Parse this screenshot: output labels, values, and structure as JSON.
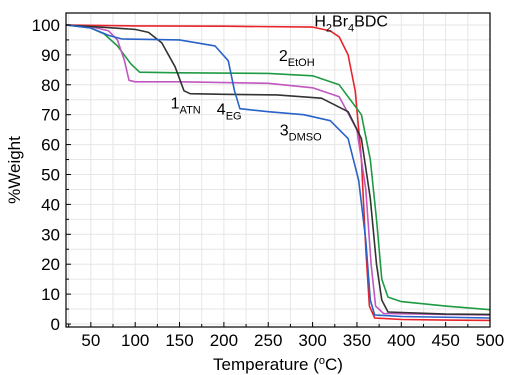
{
  "chart_data": {
    "type": "line",
    "xlabel": {
      "main": "Temperature (",
      "sup": "o",
      "tail": "C)"
    },
    "ylabel": "%Weight",
    "xlim": [
      22,
      500
    ],
    "ylim": [
      -1,
      104
    ],
    "xticks": [
      50,
      100,
      150,
      200,
      250,
      300,
      350,
      400,
      450,
      500
    ],
    "yticks": [
      0,
      10,
      20,
      30,
      40,
      50,
      60,
      70,
      80,
      90,
      100
    ],
    "grid": true,
    "series": [
      {
        "name": "H2Br4BDC",
        "color": "#e8242a",
        "points": [
          [
            22,
            100
          ],
          [
            100,
            99.7
          ],
          [
            200,
            99.6
          ],
          [
            300,
            99.3
          ],
          [
            320,
            98
          ],
          [
            330,
            96
          ],
          [
            340,
            90
          ],
          [
            348,
            78
          ],
          [
            355,
            55
          ],
          [
            360,
            25
          ],
          [
            364,
            6
          ],
          [
            370,
            2
          ],
          [
            400,
            1.5
          ],
          [
            450,
            1.3
          ],
          [
            500,
            1.2
          ]
        ]
      },
      {
        "name": "2EtOH",
        "color": "#1f9a44",
        "points": [
          [
            22,
            100
          ],
          [
            50,
            99
          ],
          [
            65,
            97
          ],
          [
            80,
            93
          ],
          [
            95,
            87
          ],
          [
            105,
            84.2
          ],
          [
            150,
            84
          ],
          [
            250,
            83.8
          ],
          [
            300,
            83
          ],
          [
            330,
            80
          ],
          [
            355,
            70
          ],
          [
            365,
            55
          ],
          [
            372,
            35
          ],
          [
            378,
            15
          ],
          [
            385,
            9
          ],
          [
            400,
            7.5
          ],
          [
            450,
            6
          ],
          [
            500,
            4.8
          ]
        ]
      },
      {
        "name": "1ATN",
        "color": "#c157c0",
        "points": [
          [
            22,
            100
          ],
          [
            50,
            99.5
          ],
          [
            70,
            98
          ],
          [
            80,
            95
          ],
          [
            88,
            88
          ],
          [
            93,
            81.5
          ],
          [
            100,
            81
          ],
          [
            150,
            81
          ],
          [
            250,
            80.5
          ],
          [
            300,
            79
          ],
          [
            330,
            76
          ],
          [
            350,
            65
          ],
          [
            360,
            45
          ],
          [
            366,
            20
          ],
          [
            371,
            6
          ],
          [
            380,
            3.5
          ],
          [
            450,
            3.2
          ],
          [
            500,
            3
          ]
        ]
      },
      {
        "name": "4EG",
        "color": "#333333",
        "points": [
          [
            22,
            100
          ],
          [
            60,
            99.3
          ],
          [
            100,
            98.5
          ],
          [
            115,
            97.5
          ],
          [
            130,
            94
          ],
          [
            145,
            86
          ],
          [
            155,
            78
          ],
          [
            162,
            77
          ],
          [
            200,
            76.8
          ],
          [
            260,
            76.6
          ],
          [
            310,
            75.5
          ],
          [
            340,
            71
          ],
          [
            355,
            62
          ],
          [
            365,
            42
          ],
          [
            372,
            20
          ],
          [
            378,
            8
          ],
          [
            385,
            4
          ],
          [
            450,
            3.3
          ],
          [
            500,
            3.2
          ]
        ]
      },
      {
        "name": "3DMSO",
        "color": "#2962c8",
        "points": [
          [
            22,
            100
          ],
          [
            50,
            99
          ],
          [
            70,
            96.5
          ],
          [
            85,
            95.3
          ],
          [
            150,
            95
          ],
          [
            190,
            93
          ],
          [
            205,
            88
          ],
          [
            212,
            78
          ],
          [
            218,
            72
          ],
          [
            250,
            71
          ],
          [
            290,
            70
          ],
          [
            320,
            68
          ],
          [
            340,
            62
          ],
          [
            352,
            48
          ],
          [
            360,
            28
          ],
          [
            365,
            8
          ],
          [
            370,
            3
          ],
          [
            400,
            2.5
          ],
          [
            500,
            2
          ]
        ]
      }
    ],
    "annotations": [
      {
        "base": "H",
        "sub": "2",
        "base2": "Br",
        "sub2": "4",
        "base3": "BDC",
        "x": 302,
        "y": 99.5
      },
      {
        "base": "2",
        "sub": "EtOH",
        "x": 262,
        "y": 88
      },
      {
        "base": "1",
        "sub": "ATN",
        "x": 140,
        "y": 72
      },
      {
        "base": "4",
        "sub": "EG",
        "x": 192,
        "y": 70
      },
      {
        "base": "3",
        "sub": "DMSO",
        "x": 263,
        "y": 63
      }
    ]
  }
}
